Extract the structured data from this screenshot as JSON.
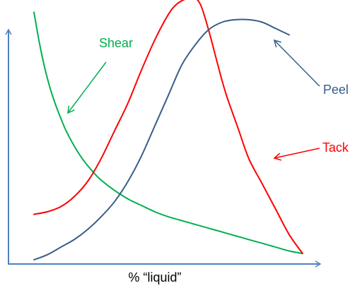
{
  "chart_data": {
    "type": "line",
    "title": "",
    "xlabel": "% “liquid”",
    "ylabel": "",
    "xlim": [
      0,
      100
    ],
    "ylim": [
      0,
      100
    ],
    "grid": false,
    "axis_color": "#4f81bd",
    "series": [
      {
        "name": "Shear",
        "color": "#00b050",
        "x": [
          0,
          2,
          4,
          6,
          8,
          10,
          12,
          15,
          18,
          21,
          24,
          28,
          32,
          36,
          40,
          45,
          50,
          55,
          60,
          65,
          70,
          75,
          80,
          85,
          90,
          95,
          100
        ],
        "y": [
          98,
          86,
          76,
          68,
          61.5,
          56,
          51,
          45,
          40,
          36,
          32.5,
          29,
          26,
          23.5,
          21.5,
          19,
          17,
          15.5,
          14,
          12.5,
          11,
          9.5,
          8,
          6.5,
          5,
          3.5,
          2.5
        ]
      },
      {
        "name": "Tack",
        "color": "#ff0000",
        "x": [
          0,
          5,
          10,
          15,
          20,
          25,
          30,
          35,
          40,
          45,
          50,
          53,
          56,
          59,
          62,
          65,
          68,
          70,
          72,
          76,
          80,
          85,
          90,
          95,
          100
        ],
        "y": [
          18,
          19,
          21,
          25,
          31,
          40,
          51,
          62,
          75,
          87,
          97,
          101,
          103,
          104,
          101,
          91,
          79,
          71,
          64,
          52,
          40,
          30,
          20,
          10,
          2.5
        ]
      },
      {
        "name": "Peel",
        "color": "#385d8a",
        "x": [
          0,
          5,
          10,
          15,
          20,
          25,
          30,
          35,
          40,
          45,
          50,
          55,
          60,
          65,
          70,
          75,
          80,
          85,
          90,
          95
        ],
        "y": [
          0,
          2,
          5,
          8,
          12,
          17,
          23,
          31,
          41,
          53,
          65,
          77,
          85,
          91,
          94,
          95,
          95,
          94,
          91.5,
          89
        ]
      }
    ]
  },
  "annotations": {
    "shear": "Shear",
    "tack": "Tack",
    "peel": "Peel"
  }
}
